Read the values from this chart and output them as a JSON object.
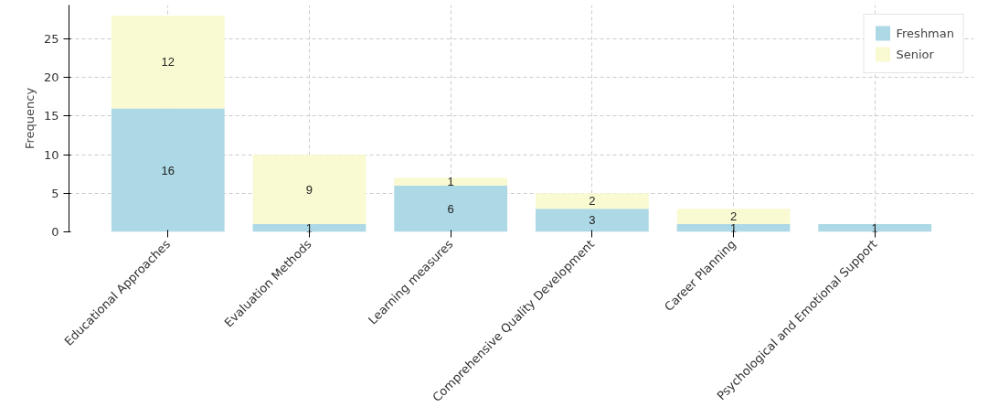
{
  "chart_data": {
    "type": "bar",
    "stacked": true,
    "ylabel": "Frequency",
    "categories": [
      "Educational Approaches",
      "Evaluation Methods",
      "Learning measures",
      "Comprehensive Quality Development",
      "Career Planning",
      "Psychological and Emotional Support"
    ],
    "series": [
      {
        "name": "Freshman",
        "color": "#add8e6",
        "values": [
          16,
          1,
          6,
          3,
          1,
          1
        ],
        "value_labels": [
          "16",
          "1",
          "6",
          "3",
          "1",
          "1"
        ]
      },
      {
        "name": "Senior",
        "color": "#fafad2",
        "values": [
          12,
          9,
          1,
          2,
          2,
          0
        ],
        "value_labels": [
          "12",
          "9",
          "1",
          "2",
          "2",
          null
        ]
      }
    ],
    "ylim": [
      0,
      29.4
    ],
    "yticks": [
      0,
      5,
      10,
      15,
      20,
      25
    ],
    "grid": true,
    "legend": "top right"
  }
}
